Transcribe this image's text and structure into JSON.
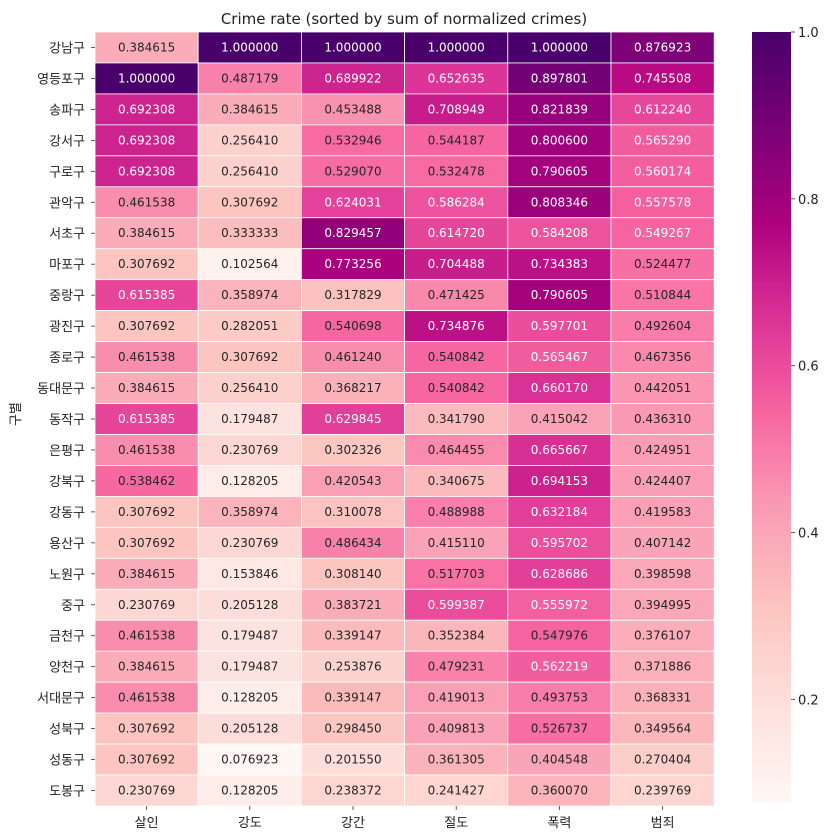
{
  "chart_data": {
    "type": "heatmap",
    "title": "Crime rate (sorted by sum of normalized crimes)",
    "ylabel": "구별",
    "xlabel": "",
    "columns": [
      "살인",
      "강도",
      "강간",
      "절도",
      "폭력",
      "범죄"
    ],
    "rows": [
      "강남구",
      "영등포구",
      "송파구",
      "강서구",
      "구로구",
      "관악구",
      "서초구",
      "마포구",
      "중랑구",
      "광진구",
      "종로구",
      "동대문구",
      "동작구",
      "은평구",
      "강북구",
      "강동구",
      "용산구",
      "노원구",
      "중구",
      "금천구",
      "양천구",
      "서대문구",
      "성북구",
      "성동구",
      "도봉구"
    ],
    "values": [
      [
        0.384615,
        1.0,
        1.0,
        1.0,
        1.0,
        0.876923
      ],
      [
        1.0,
        0.487179,
        0.689922,
        0.652635,
        0.897801,
        0.745508
      ],
      [
        0.692308,
        0.384615,
        0.453488,
        0.708949,
        0.821839,
        0.61224
      ],
      [
        0.692308,
        0.25641,
        0.532946,
        0.544187,
        0.8006,
        0.56529
      ],
      [
        0.692308,
        0.25641,
        0.52907,
        0.532478,
        0.790605,
        0.560174
      ],
      [
        0.461538,
        0.307692,
        0.624031,
        0.586284,
        0.808346,
        0.557578
      ],
      [
        0.384615,
        0.333333,
        0.829457,
        0.61472,
        0.584208,
        0.549267
      ],
      [
        0.307692,
        0.102564,
        0.773256,
        0.704488,
        0.734383,
        0.524477
      ],
      [
        0.615385,
        0.358974,
        0.317829,
        0.471425,
        0.790605,
        0.510844
      ],
      [
        0.307692,
        0.282051,
        0.540698,
        0.734876,
        0.597701,
        0.492604
      ],
      [
        0.461538,
        0.307692,
        0.46124,
        0.540842,
        0.565467,
        0.467356
      ],
      [
        0.384615,
        0.25641,
        0.368217,
        0.540842,
        0.66017,
        0.442051
      ],
      [
        0.615385,
        0.179487,
        0.629845,
        0.34179,
        0.415042,
        0.43631
      ],
      [
        0.461538,
        0.230769,
        0.302326,
        0.464455,
        0.665667,
        0.424951
      ],
      [
        0.538462,
        0.128205,
        0.420543,
        0.340675,
        0.694153,
        0.424407
      ],
      [
        0.307692,
        0.358974,
        0.310078,
        0.488988,
        0.632184,
        0.419583
      ],
      [
        0.307692,
        0.230769,
        0.486434,
        0.41511,
        0.595702,
        0.407142
      ],
      [
        0.384615,
        0.153846,
        0.30814,
        0.517703,
        0.628686,
        0.398598
      ],
      [
        0.230769,
        0.205128,
        0.383721,
        0.599387,
        0.555972,
        0.394995
      ],
      [
        0.461538,
        0.179487,
        0.339147,
        0.352384,
        0.547976,
        0.376107
      ],
      [
        0.384615,
        0.179487,
        0.253876,
        0.479231,
        0.562219,
        0.371886
      ],
      [
        0.461538,
        0.128205,
        0.339147,
        0.419013,
        0.493753,
        0.368331
      ],
      [
        0.307692,
        0.205128,
        0.29845,
        0.409813,
        0.526737,
        0.349564
      ],
      [
        0.307692,
        0.076923,
        0.20155,
        0.361305,
        0.404548,
        0.270404
      ],
      [
        0.230769,
        0.128205,
        0.238372,
        0.241427,
        0.36007,
        0.239769
      ]
    ],
    "value_format": "6 decimals",
    "colormap": "RdPu",
    "color_range": [
      0.076923,
      1.0
    ],
    "colorbar_ticks": [
      "0.2",
      "0.4",
      "0.6",
      "0.8",
      "1.0"
    ],
    "colorbar_tick_values": [
      0.2,
      0.4,
      0.6,
      0.8,
      1.0
    ],
    "cell_border_color": "#ffffff",
    "grid": false
  }
}
